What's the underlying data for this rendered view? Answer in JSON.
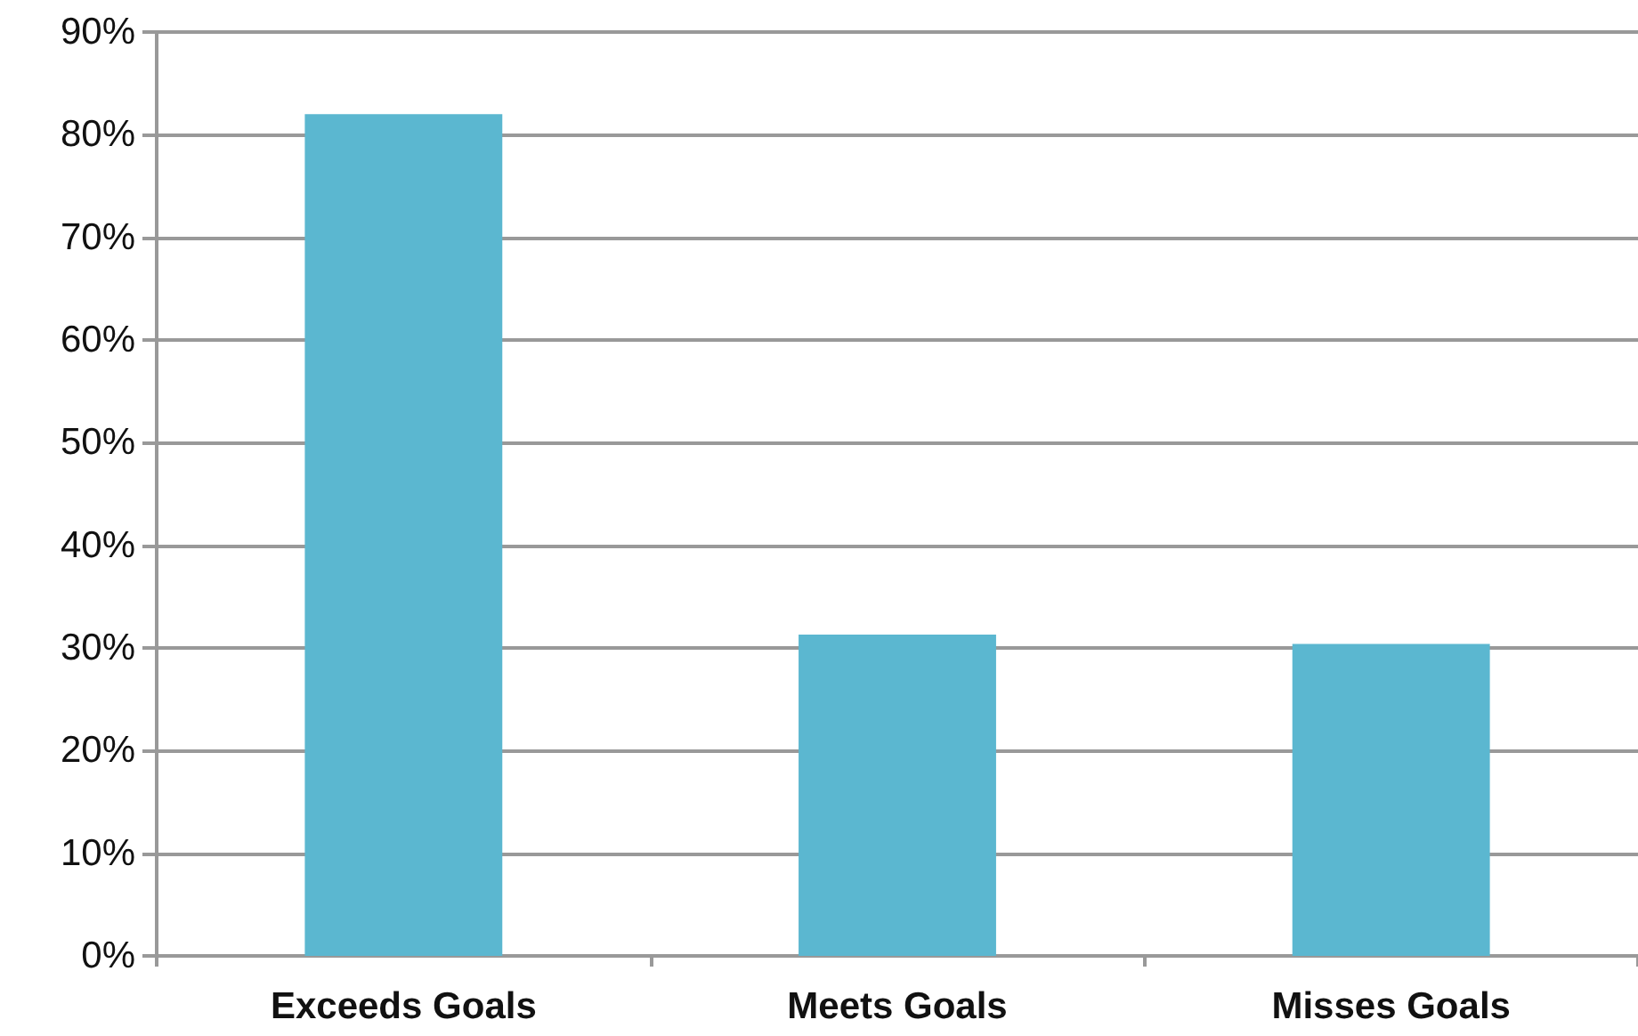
{
  "chart_data": {
    "type": "bar",
    "categories": [
      "Exceeds Goals",
      "Meets Goals",
      "Misses Goals"
    ],
    "series": [
      {
        "color": "#5bb7d0",
        "values": [
          82,
          31.3,
          30.4
        ]
      }
    ],
    "ylim": [
      0,
      90
    ],
    "yticks": [
      {
        "value": 0,
        "label": "0%"
      },
      {
        "value": 10,
        "label": "10%"
      },
      {
        "value": 20,
        "label": "20%"
      },
      {
        "value": 30,
        "label": "30%"
      },
      {
        "value": 40,
        "label": "40%"
      },
      {
        "value": 50,
        "label": "50%"
      },
      {
        "value": 60,
        "label": "60%"
      },
      {
        "value": 70,
        "label": "70%"
      },
      {
        "value": 80,
        "label": "80%"
      },
      {
        "value": 90,
        "label": "90%"
      }
    ],
    "grid": "y"
  }
}
